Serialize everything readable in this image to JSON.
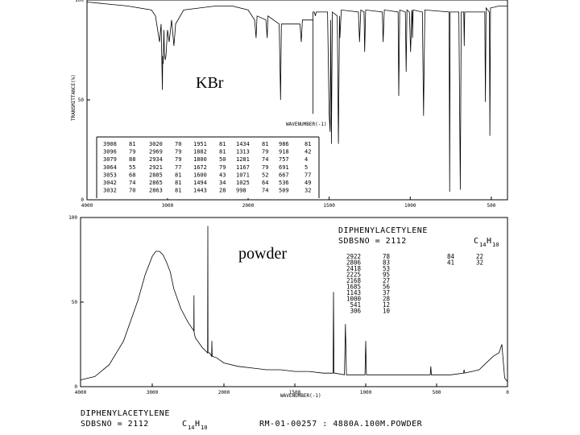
{
  "chart_data": [
    {
      "type": "line",
      "title": "",
      "annotation": "KBr",
      "xlabel": "WAVENUMBER(-1)",
      "ylabel": "TRANSMITTANCE(%)",
      "xlim": [
        4000,
        400
      ],
      "ylim": [
        0,
        100
      ],
      "x_ticks": [
        "4000",
        "3000",
        "2000",
        "1500",
        "1000",
        "500"
      ],
      "y_ticks": [
        "100",
        "50",
        "0"
      ],
      "series": [
        {
          "x": [
            4000,
            3500,
            3200,
            3150,
            3100,
            3080,
            3064,
            3060,
            3055,
            3045,
            3040,
            3030,
            3020,
            3000,
            2980,
            2950,
            2921,
            2900,
            2800,
            2600,
            2400,
            2200,
            2000,
            1960,
            1951,
            1945,
            1890,
            1882,
            1878,
            1808,
            1800,
            1795,
            1680,
            1672,
            1665,
            1600,
            1600,
            1600,
            1592,
            1585,
            1580,
            1510,
            1500,
            1494,
            1490,
            1486,
            1480,
            1450,
            1443,
            1436,
            1434,
            1425,
            1320,
            1313,
            1305,
            1285,
            1281,
            1275,
            1172,
            1167,
            1160,
            1075,
            1071,
            1065,
            1030,
            1025,
            1020,
            1005,
            998,
            990,
            988,
            986,
            982,
            925,
            918,
            910,
            760,
            757,
            754,
            700,
            691,
            685,
            670,
            667,
            664,
            540,
            536,
            532,
            512,
            509,
            505,
            450,
            400
          ],
          "y": [
            99,
            97,
            95,
            92,
            79,
            88,
            55,
            72,
            68,
            85,
            74,
            70,
            72,
            85,
            79,
            90,
            77,
            88,
            95,
            96,
            97,
            97,
            95,
            90,
            81,
            92,
            90,
            81,
            92,
            88,
            50,
            88,
            88,
            79,
            90,
            90,
            43,
            94,
            94,
            92,
            94,
            94,
            43,
            34,
            90,
            28,
            94,
            92,
            28,
            92,
            81,
            95,
            94,
            79,
            95,
            94,
            74,
            95,
            94,
            79,
            95,
            94,
            52,
            95,
            94,
            64,
            95,
            94,
            74,
            95,
            94,
            81,
            95,
            94,
            42,
            95,
            94,
            4,
            94,
            94,
            5,
            94,
            94,
            77,
            94,
            94,
            49,
            96,
            94,
            32,
            96,
            97,
            97
          ]
        }
      ],
      "peak_table": {
        "columns": [
          [
            [
              "3908",
              "81"
            ],
            [
              "3096",
              "79"
            ],
            [
              "3079",
              "88"
            ],
            [
              "3064",
              "55"
            ],
            [
              "3053",
              "68"
            ],
            [
              "3042",
              "74"
            ],
            [
              "3032",
              "70"
            ]
          ],
          [
            [
              "3020",
              "70"
            ],
            [
              "2969",
              "79"
            ],
            [
              "2934",
              "79"
            ],
            [
              "2921",
              "77"
            ],
            [
              "2885",
              "81"
            ],
            [
              "2865",
              "81"
            ],
            [
              "2863",
              "81"
            ]
          ],
          [
            [
              "1951",
              "81"
            ],
            [
              "1882",
              "81"
            ],
            [
              "1800",
              "50"
            ],
            [
              "1672",
              "79"
            ],
            [
              "1600",
              "43"
            ],
            [
              "1494",
              "34"
            ],
            [
              "1443",
              "28"
            ]
          ],
          [
            [
              "1434",
              "81"
            ],
            [
              "1313",
              "79"
            ],
            [
              "1281",
              "74"
            ],
            [
              "1167",
              "79"
            ],
            [
              "1071",
              "52"
            ],
            [
              "1025",
              "64"
            ],
            [
              "998",
              "74"
            ]
          ],
          [
            [
              "986",
              "81"
            ],
            [
              "918",
              "42"
            ],
            [
              "757",
              "4"
            ],
            [
              "691",
              "5"
            ],
            [
              "667",
              "77"
            ],
            [
              "536",
              "49"
            ],
            [
              "509",
              "32"
            ]
          ]
        ]
      }
    },
    {
      "type": "line",
      "annotation": "powder",
      "title": "DIPHENYLACETYLENE",
      "sdbs": "SDBSNO = 2112",
      "formula": "C14H10",
      "xlabel": "WAVENUMBER(-1)",
      "xlim": [
        4000,
        0
      ],
      "ylim": [
        0,
        100
      ],
      "x_ticks": [
        "4000",
        "3000",
        "2000",
        "1500",
        "1000",
        "500",
        "0"
      ],
      "y_ticks": [
        "100",
        "50",
        "0"
      ],
      "series": [
        {
          "x": [
            4000,
            3800,
            3600,
            3400,
            3200,
            3100,
            3000,
            2950,
            2922,
            2900,
            2850,
            2806,
            2750,
            2700,
            2600,
            2500,
            2420,
            2418,
            2416,
            2400,
            2300,
            2228,
            2225,
            2222,
            2200,
            2172,
            2168,
            2164,
            2100,
            2000,
            1900,
            1800,
            1700,
            1600,
            1500,
            1400,
            1300,
            1240,
            1230,
            1227,
            1224,
            1218,
            1150,
            1143,
            1136,
            1100,
            1005,
            1000,
            995,
            900,
            800,
            700,
            650,
            600,
            545,
            541,
            537,
            450,
            400,
            310,
            306,
            302,
            250,
            200,
            150,
            100,
            60,
            40,
            20,
            0
          ],
          "y": [
            4,
            6,
            13,
            27,
            51,
            66,
            77,
            80,
            80,
            80,
            78,
            74,
            68,
            58,
            46,
            38,
            33,
            54,
            32,
            29,
            23,
            20,
            95,
            20,
            20,
            18,
            27,
            18,
            17,
            14,
            12,
            11,
            10,
            10,
            9,
            9,
            8,
            8,
            8,
            56,
            8,
            8,
            7,
            37,
            7,
            7,
            7,
            27,
            7,
            7,
            7,
            7,
            7,
            7,
            7,
            12,
            7,
            7,
            7,
            8,
            10,
            8,
            9,
            10,
            14,
            18,
            20,
            25,
            5,
            3
          ]
        }
      ],
      "peak_table": {
        "columns": [
          [
            [
              "2922",
              "78"
            ],
            [
              "2806",
              "83"
            ],
            [
              "2418",
              "53"
            ],
            [
              "2225",
              "95"
            ],
            [
              "2168",
              "27"
            ],
            [
              "1685",
              "56"
            ],
            [
              "1143",
              "37"
            ],
            [
              "1000",
              "28"
            ],
            [
              "541",
              "12"
            ],
            [
              "306",
              "10"
            ]
          ],
          [
            [
              "84",
              "22"
            ],
            [
              "41",
              "32"
            ]
          ]
        ]
      }
    }
  ],
  "footer": {
    "name": "DIPHENYLACETYLENE",
    "sdbs": "SDBSNO = 2112",
    "formula_main": "C",
    "formula_sub1": "14",
    "formula_h": "H",
    "formula_sub2": "10",
    "run": "RM-01-00257 : 4880A.100M.POWDER"
  },
  "top_wavenumber_label": "WAVENUMBER(-1)"
}
